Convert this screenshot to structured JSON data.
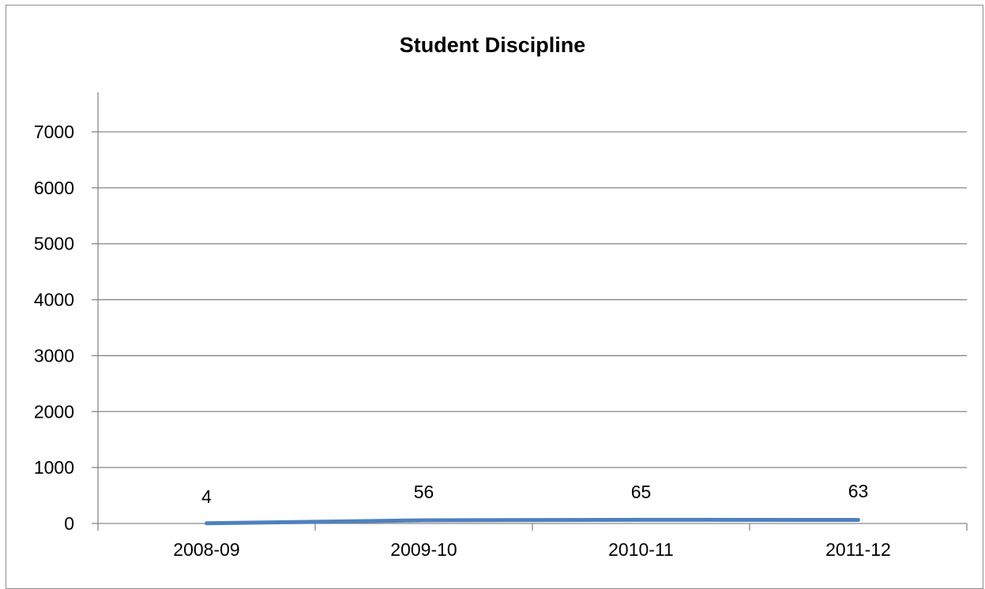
{
  "chart_data": {
    "type": "line",
    "title": "Student Discipline",
    "xlabel": "",
    "ylabel": "",
    "categories": [
      "2008-09",
      "2009-10",
      "2010-11",
      "2011-12"
    ],
    "series": [
      {
        "values": [
          4,
          56,
          65,
          63
        ],
        "color": "#4f81bd"
      }
    ],
    "ylim": [
      0,
      7000
    ],
    "yticks": [
      0,
      1000,
      2000,
      3000,
      4000,
      5000,
      6000,
      7000
    ],
    "grid": true,
    "legend": "none",
    "data_labels": [
      "4",
      "56",
      "65",
      "63"
    ]
  }
}
